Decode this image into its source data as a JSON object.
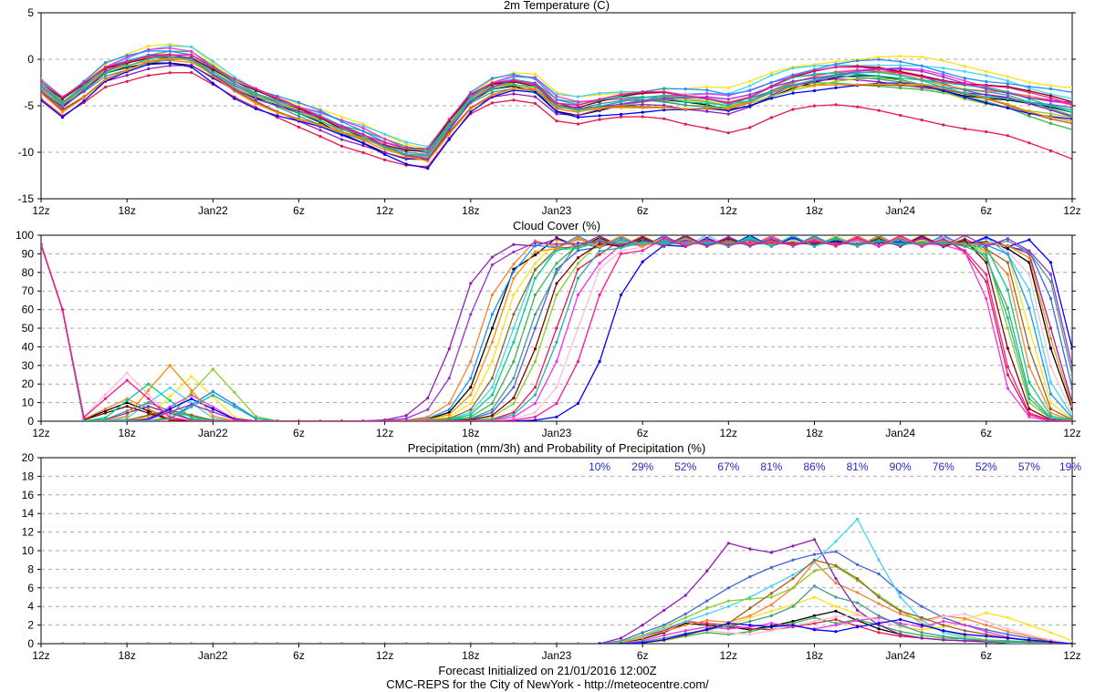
{
  "footer": {
    "line1": "Forecast Initialized on 21/01/2016 12:00Z",
    "line2": "CMC-REPS for the City of NewYork - http://meteocentre.com/"
  },
  "colors": {
    "members": [
      "#000000",
      "#e6194b",
      "#3cb44b",
      "#ffe119",
      "#4363d8",
      "#f58231",
      "#911eb4",
      "#42d4f4",
      "#f032e6",
      "#8ccc2a",
      "#fabed4",
      "#469990",
      "#9a6324",
      "#0000ff",
      "#1e90ff",
      "#800000",
      "#00cc88",
      "#ff8c00",
      "#9932cc",
      "#20b2aa",
      "#ff1493"
    ],
    "pop_text": "#2828c8"
  },
  "chart_data": [
    {
      "type": "line",
      "title": "2m Temperature (C)",
      "ylim": [
        -15,
        5
      ],
      "yticks": [
        5,
        0,
        -5,
        -10,
        -15
      ],
      "xlim": [
        0,
        48
      ],
      "xticks": [
        {
          "x": 0,
          "label": "12z"
        },
        {
          "x": 4,
          "label": "18z"
        },
        {
          "x": 8,
          "label": "Jan22"
        },
        {
          "x": 12,
          "label": "6z"
        },
        {
          "x": 16,
          "label": "12z"
        },
        {
          "x": 20,
          "label": "18z"
        },
        {
          "x": 24,
          "label": "Jan23"
        },
        {
          "x": 28,
          "label": "6z"
        },
        {
          "x": 32,
          "label": "12z"
        },
        {
          "x": 36,
          "label": "18z"
        },
        {
          "x": 40,
          "label": "Jan24"
        },
        {
          "x": 44,
          "label": "6z"
        },
        {
          "x": 48,
          "label": "12z"
        }
      ],
      "grid": "dashed horizontal",
      "ensemble_mean": [
        -3.0,
        -4.8,
        -3.2,
        -1.3,
        -0.5,
        0.2,
        0.4,
        0.2,
        -1.3,
        -2.8,
        -3.9,
        -4.8,
        -5.6,
        -6.4,
        -7.4,
        -8.2,
        -9.2,
        -10.0,
        -10.3,
        -7.2,
        -4.4,
        -3.0,
        -2.5,
        -2.8,
        -4.8,
        -5.2,
        -4.8,
        -4.5,
        -4.3,
        -4.2,
        -4.4,
        -4.5,
        -4.8,
        -4.2,
        -3.2,
        -2.4,
        -2.0,
        -1.7,
        -1.6,
        -1.6,
        -1.8,
        -2.1,
        -2.6,
        -3.1,
        -3.5,
        -3.9,
        -4.5,
        -5.0,
        -5.5
      ],
      "member_offsets": [
        -0.5,
        -1.6,
        0.3,
        0.9,
        0.0,
        -0.2,
        -0.9,
        0.8,
        0.5,
        -0.1,
        0.3,
        -0.3,
        -0.5,
        -1.1,
        0.6,
        0.2,
        0.1,
        -0.6,
        -0.1,
        0.1,
        0.4
      ],
      "member_trend": [
        0.0,
        -3.5,
        -2.0,
        1.6,
        0.0,
        0.5,
        0.4,
        0.8,
        0.2,
        -1.0,
        0.5,
        0.0,
        -0.6,
        0.1,
        1.0,
        0.6,
        0.0,
        -0.3,
        0.8,
        -0.4,
        0.2
      ]
    },
    {
      "type": "line",
      "title": "Cloud Cover (%)",
      "ylim": [
        0,
        100
      ],
      "yticks": [
        100,
        90,
        80,
        70,
        60,
        50,
        40,
        30,
        20,
        10,
        0
      ],
      "xlim": [
        0,
        48
      ],
      "xticks": [
        {
          "x": 0,
          "label": "12z"
        },
        {
          "x": 4,
          "label": "18z"
        },
        {
          "x": 8,
          "label": "Jan22"
        },
        {
          "x": 12,
          "label": "6z"
        },
        {
          "x": 16,
          "label": "12z"
        },
        {
          "x": 20,
          "label": "18z"
        },
        {
          "x": 24,
          "label": "Jan23"
        },
        {
          "x": 28,
          "label": "6z"
        },
        {
          "x": 32,
          "label": "12z"
        },
        {
          "x": 36,
          "label": "18z"
        },
        {
          "x": 40,
          "label": "Jan24"
        },
        {
          "x": 44,
          "label": "6z"
        },
        {
          "x": 48,
          "label": "12z"
        }
      ],
      "grid": "dashed horizontal",
      "rise_center": [
        21.0,
        24.0,
        22.5,
        21.5,
        23.0,
        20.5,
        19.3,
        22.0,
        24.5,
        23.5,
        25.0,
        22.8,
        21.8,
        26.5,
        20.8,
        23.3,
        22.2,
        21.2,
        19.8,
        24.2,
        25.5
      ],
      "fall_center": [
        46.8,
        44.5,
        45.2,
        46.0,
        47.3,
        45.6,
        47.0,
        46.4,
        44.3,
        45.0,
        46.6,
        47.5,
        45.8,
        47.8,
        46.2,
        44.8,
        45.4,
        46.9,
        47.6,
        45.1,
        44.6
      ],
      "early_peak": [
        10,
        0,
        5,
        24,
        16,
        12,
        8,
        18,
        14,
        28,
        26,
        10,
        6,
        12,
        16,
        8,
        20,
        30,
        9,
        14,
        22
      ]
    },
    {
      "type": "line",
      "title": "Precipitation (mm/3h) and Probability of Precipitation (%)",
      "ylim": [
        0,
        20
      ],
      "yticks": [
        20,
        18,
        16,
        14,
        12,
        10,
        8,
        6,
        4,
        2,
        0
      ],
      "xlim": [
        0,
        48
      ],
      "xticks": [
        {
          "x": 0,
          "label": "12z"
        },
        {
          "x": 4,
          "label": "18z"
        },
        {
          "x": 8,
          "label": "Jan22"
        },
        {
          "x": 12,
          "label": "6z"
        },
        {
          "x": 16,
          "label": "12z"
        },
        {
          "x": 20,
          "label": "18z"
        },
        {
          "x": 24,
          "label": "Jan23"
        },
        {
          "x": 28,
          "label": "6z"
        },
        {
          "x": 32,
          "label": "12z"
        },
        {
          "x": 36,
          "label": "18z"
        },
        {
          "x": 40,
          "label": "Jan24"
        },
        {
          "x": 44,
          "label": "6z"
        },
        {
          "x": 48,
          "label": "12z"
        }
      ],
      "grid": "dashed horizontal",
      "pop": [
        {
          "x": 26,
          "label": "10%"
        },
        {
          "x": 28,
          "label": "29%"
        },
        {
          "x": 30,
          "label": "52%"
        },
        {
          "x": 32,
          "label": "67%"
        },
        {
          "x": 34,
          "label": "81%"
        },
        {
          "x": 36,
          "label": "86%"
        },
        {
          "x": 38,
          "label": "81%"
        },
        {
          "x": 40,
          "label": "90%"
        },
        {
          "x": 42,
          "label": "76%"
        },
        {
          "x": 44,
          "label": "52%"
        },
        {
          "x": 46,
          "label": "57%"
        },
        {
          "x": 48,
          "label": "19%"
        }
      ],
      "members": [
        {
          "x": [
            26,
            27,
            28,
            29,
            30,
            31,
            32,
            33,
            34,
            35,
            36,
            37,
            38,
            39,
            40,
            41,
            42,
            43,
            44,
            45,
            46,
            47,
            48
          ],
          "y": [
            0,
            0.1,
            0.5,
            1.2,
            2.2,
            2.0,
            1.8,
            1.5,
            1.9,
            2.4,
            3.0,
            3.5,
            2.5,
            1.6,
            1.0,
            0.6,
            0.4,
            0.3,
            0.3,
            0.2,
            0.1,
            0,
            0
          ]
        },
        {
          "x": [
            26,
            27,
            28,
            29,
            30,
            31,
            32,
            33,
            34,
            35,
            36,
            37,
            38,
            39,
            40,
            41,
            42,
            43,
            44,
            45,
            46,
            47,
            48
          ],
          "y": [
            0,
            0.2,
            0.8,
            1.4,
            2.4,
            2.2,
            2.0,
            1.6,
            1.5,
            1.8,
            2.2,
            2.6,
            1.9,
            1.2,
            0.8,
            0.6,
            0.4,
            0.3,
            0.2,
            0.1,
            0.1,
            0,
            0
          ]
        },
        {
          "x": [
            26,
            27,
            28,
            29,
            30,
            31,
            32,
            33,
            34,
            35,
            36,
            37,
            38,
            39,
            40,
            41,
            42,
            43,
            44,
            45,
            46,
            47,
            48
          ],
          "y": [
            0,
            0,
            0.1,
            0.3,
            0.8,
            1.2,
            1.0,
            1.3,
            1.8,
            2.2,
            2.8,
            2.2,
            2.6,
            2.0,
            1.3,
            0.9,
            0.6,
            0.5,
            0.4,
            0.3,
            0.2,
            0.1,
            0
          ]
        },
        {
          "x": [
            26,
            27,
            28,
            29,
            30,
            31,
            32,
            33,
            34,
            35,
            36,
            37,
            38,
            39,
            40,
            41,
            42,
            43,
            44,
            45,
            46,
            47,
            48
          ],
          "y": [
            0,
            0,
            0.1,
            0.3,
            0.9,
            1.4,
            2.0,
            2.8,
            3.5,
            4.2,
            5.0,
            4.0,
            3.2,
            2.5,
            1.8,
            1.5,
            1.8,
            2.6,
            3.3,
            2.8,
            2.0,
            1.2,
            0.3
          ]
        },
        {
          "x": [
            26,
            27,
            28,
            29,
            30,
            31,
            32,
            33,
            34,
            35,
            36,
            37,
            38,
            39,
            40,
            41,
            42,
            43,
            44,
            45,
            46,
            47,
            48
          ],
          "y": [
            0,
            0.3,
            1.2,
            2.0,
            3.2,
            4.6,
            6.0,
            7.2,
            8.2,
            9.0,
            9.6,
            9.9,
            8.5,
            7.5,
            5.5,
            4.0,
            2.8,
            2.0,
            1.5,
            1.0,
            0.6,
            0.3,
            0
          ]
        },
        {
          "x": [
            26,
            27,
            28,
            29,
            30,
            31,
            32,
            33,
            34,
            35,
            36,
            37,
            38,
            39,
            40,
            41,
            42,
            43,
            44,
            45,
            46,
            47,
            48
          ],
          "y": [
            0,
            0.1,
            0.6,
            1.3,
            2.0,
            2.5,
            2.3,
            3.0,
            4.2,
            6.0,
            8.8,
            6.5,
            5.5,
            4.3,
            3.2,
            2.5,
            3.0,
            2.7,
            2.0,
            1.3,
            0.8,
            0.3,
            0
          ]
        },
        {
          "x": [
            26,
            27,
            28,
            29,
            30,
            31,
            32,
            33,
            34,
            35,
            36,
            37,
            38,
            39,
            40,
            41,
            42,
            43,
            44,
            45,
            46,
            47,
            48
          ],
          "y": [
            0,
            0.6,
            2.0,
            3.6,
            5.2,
            7.8,
            10.8,
            10.2,
            9.8,
            10.5,
            11.2,
            7.0,
            3.6,
            2.0,
            1.0,
            0.6,
            0.4,
            0.3,
            0.2,
            0.1,
            0,
            0,
            0
          ]
        },
        {
          "x": [
            26,
            27,
            28,
            29,
            30,
            31,
            32,
            33,
            34,
            35,
            36,
            37,
            38,
            39,
            40,
            41,
            42,
            43,
            44,
            45,
            46,
            47,
            48
          ],
          "y": [
            0,
            0.2,
            0.8,
            1.6,
            2.4,
            3.2,
            4.0,
            5.0,
            6.2,
            7.4,
            8.8,
            11.0,
            13.4,
            9.0,
            5.0,
            2.5,
            1.2,
            0.6,
            0.3,
            0.1,
            0,
            0,
            0
          ]
        },
        {
          "x": [
            26,
            27,
            28,
            29,
            30,
            31,
            32,
            33,
            34,
            35,
            36,
            37,
            38,
            39,
            40,
            41,
            42,
            43,
            44,
            45,
            46,
            47,
            48
          ],
          "y": [
            0,
            0,
            0.3,
            0.9,
            1.4,
            1.8,
            1.6,
            1.8,
            2.2,
            1.9,
            1.6,
            2.0,
            2.5,
            2.8,
            2.2,
            1.8,
            2.4,
            2.0,
            1.3,
            0.7,
            0.3,
            0.1,
            0
          ]
        },
        {
          "x": [
            26,
            27,
            28,
            29,
            30,
            31,
            32,
            33,
            34,
            35,
            36,
            37,
            38,
            39,
            40,
            41,
            42,
            43,
            44,
            45,
            46,
            47,
            48
          ],
          "y": [
            0,
            0.2,
            0.9,
            1.8,
            2.8,
            3.8,
            4.6,
            4.8,
            5.0,
            6.0,
            7.8,
            8.3,
            6.8,
            5.2,
            3.6,
            2.2,
            1.4,
            0.8,
            0.4,
            0.2,
            0.1,
            0,
            0
          ]
        },
        {
          "x": [
            26,
            27,
            28,
            29,
            30,
            31,
            32,
            33,
            34,
            35,
            36,
            37,
            38,
            39,
            40,
            41,
            42,
            43,
            44,
            45,
            46,
            47,
            48
          ],
          "y": [
            0,
            0,
            0.2,
            0.5,
            1.0,
            1.4,
            1.2,
            1.0,
            1.4,
            2.0,
            2.4,
            2.9,
            3.1,
            2.5,
            1.8,
            2.3,
            2.9,
            3.2,
            2.4,
            1.6,
            0.9,
            0.4,
            0
          ]
        },
        {
          "x": [
            26,
            27,
            28,
            29,
            30,
            31,
            32,
            33,
            34,
            35,
            36,
            37,
            38,
            39,
            40,
            41,
            42,
            43,
            44,
            45,
            46,
            47,
            48
          ],
          "y": [
            0,
            0,
            0.2,
            0.6,
            1.1,
            1.5,
            1.9,
            2.4,
            3.0,
            4.0,
            6.2,
            5.0,
            4.4,
            3.0,
            2.0,
            1.2,
            0.8,
            0.5,
            0.3,
            0.2,
            0.1,
            0,
            0
          ]
        },
        {
          "x": [
            26,
            27,
            28,
            29,
            30,
            31,
            32,
            33,
            34,
            35,
            36,
            37,
            38,
            39,
            40,
            41,
            42,
            43,
            44,
            45,
            46,
            47,
            48
          ],
          "y": [
            0,
            0,
            0.1,
            0.4,
            0.9,
            1.6,
            2.2,
            3.8,
            5.4,
            7.0,
            9.0,
            8.4,
            7.0,
            5.0,
            3.5,
            2.8,
            2.0,
            1.4,
            1.0,
            0.6,
            0.3,
            0.1,
            0
          ]
        },
        {
          "x": [
            26,
            27,
            28,
            29,
            30,
            31,
            32,
            33,
            34,
            35,
            36,
            37,
            38,
            39,
            40,
            41,
            42,
            43,
            44,
            45,
            46,
            47,
            48
          ],
          "y": [
            0,
            0,
            0.1,
            0.4,
            1.0,
            1.5,
            2.2,
            2.0,
            1.8,
            2.0,
            1.5,
            1.3,
            1.8,
            2.2,
            2.6,
            2.0,
            1.4,
            1.0,
            0.8,
            0.6,
            0.4,
            0.2,
            0
          ]
        }
      ]
    }
  ]
}
